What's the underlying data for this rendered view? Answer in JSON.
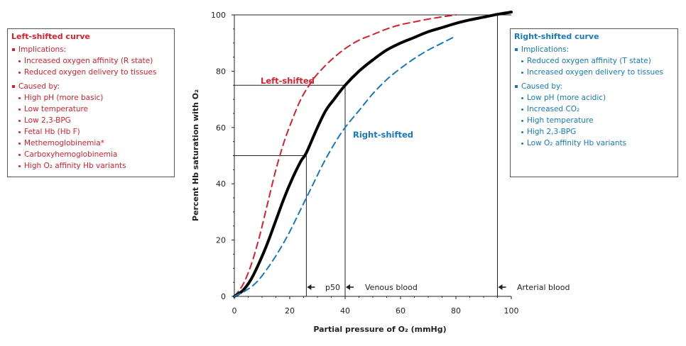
{
  "chart_data": {
    "type": "line",
    "xlabel": "Partial pressure of O2 (mmHg)",
    "ylabel": "Percent Hb saturation with O2",
    "xlim": [
      0,
      100
    ],
    "ylim": [
      0,
      100
    ],
    "xticks": [
      0,
      20,
      40,
      60,
      80,
      100
    ],
    "yticks": [
      0,
      20,
      40,
      60,
      80,
      100
    ],
    "grid": false,
    "series": [
      {
        "name": "Left-shifted",
        "color": "#d6202e",
        "style": "dashed",
        "x": [
          0,
          3,
          6,
          9,
          12,
          15,
          18,
          21,
          24,
          27,
          30,
          35,
          40,
          45,
          50,
          55,
          60,
          65,
          70,
          75,
          80
        ],
        "y": [
          0,
          4,
          11,
          21,
          33,
          45,
          55,
          63,
          70,
          75,
          79,
          84,
          88,
          91,
          93,
          95,
          96.5,
          97.5,
          98.5,
          99.3,
          100
        ]
      },
      {
        "name": "",
        "color": "#000000",
        "style": "solid",
        "x": [
          0,
          3,
          6,
          9,
          12,
          15,
          18,
          21,
          24,
          26,
          30,
          33,
          36,
          40,
          45,
          50,
          55,
          60,
          65,
          70,
          75,
          80,
          85,
          90,
          95,
          100
        ],
        "y": [
          0,
          2,
          6,
          12,
          19,
          27,
          35,
          42,
          48,
          51,
          60,
          66,
          70,
          75,
          80,
          84,
          87.5,
          90,
          92,
          94,
          95.5,
          97,
          98.2,
          99.2,
          100.2,
          101
        ]
      },
      {
        "name": "Right-shifted",
        "color": "#1679c0",
        "style": "dashed",
        "x": [
          0,
          4,
          8,
          12,
          16,
          20,
          24,
          28,
          32,
          36,
          40,
          45,
          50,
          55,
          60,
          65,
          70,
          75,
          80
        ],
        "y": [
          0,
          2,
          5,
          10,
          16,
          23,
          31,
          39,
          47,
          54,
          60,
          66,
          72,
          77,
          81,
          84.5,
          87.5,
          90,
          92.5
        ]
      }
    ],
    "reference_points": [
      {
        "label": "p50",
        "x": 26,
        "y": 50
      },
      {
        "label": "Venous blood",
        "x": 40,
        "y": 75
      },
      {
        "label": "Arterial blood",
        "x": 95,
        "y": 100
      }
    ]
  },
  "left_box": {
    "title": "Left-shifted curve",
    "color": "#d6202e",
    "implications_head": "Implications:",
    "implications": [
      "Increased oxygen affinity (R state)",
      "Reduced oxygen delivery to tissues"
    ],
    "causes_head": "Caused by:",
    "causes": [
      "High pH (more basic)",
      "Low temperature",
      "Low 2,3-BPG",
      "Fetal Hb (Hb F)",
      "Methemoglobinemia*",
      "Carboxyhemoglobinemia",
      "High O2 affinity Hb variants"
    ]
  },
  "right_box": {
    "title": "Right-shifted curve",
    "color": "#1679c0",
    "implications_head": "Implications:",
    "implications": [
      "Reduced oxygen affinity (T state)",
      "Increased oxygen delivery to tissues"
    ],
    "causes_head": "Caused by:",
    "causes": [
      "Low pH (more acidic)",
      "Increased CO2",
      "High temperature",
      "High 2,3-BPG",
      "Low O2 affinity Hb variants"
    ]
  }
}
